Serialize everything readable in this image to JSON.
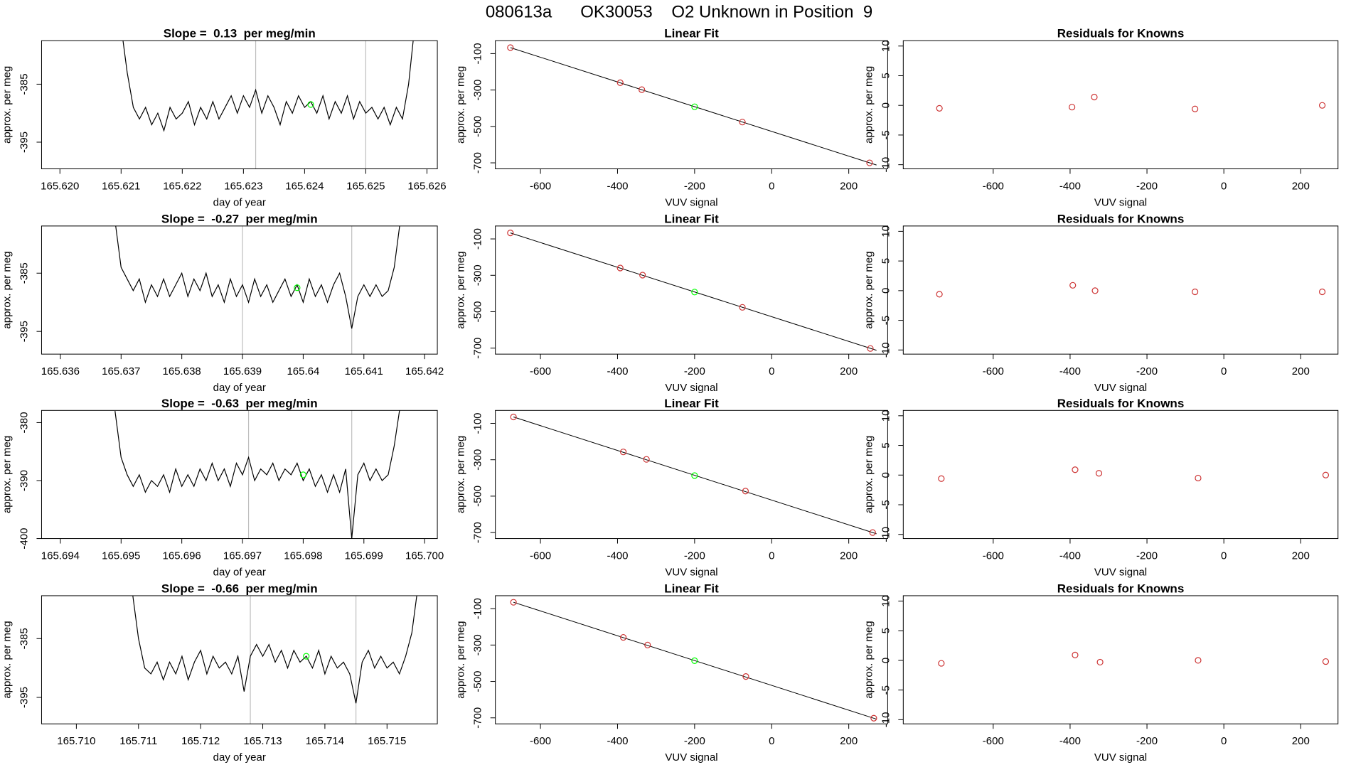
{
  "title": "080613a      OK30053    O2 Unknown in Position  9",
  "chart_data": [
    {
      "type": "line",
      "title": "Slope =  0.13  per meg/min",
      "xlabel": "day of year",
      "ylabel": "approx. per meg",
      "xlim": [
        165.6197,
        165.62617
      ],
      "ylim": [
        -399.6,
        -377.5
      ],
      "xticks": [
        {
          "value": 165.62,
          "label": "165.620"
        },
        165.621,
        165.622,
        165.623,
        165.624,
        165.625,
        165.626
      ],
      "yticks": [
        -385,
        -395
      ],
      "x": [
        165.621,
        165.6211,
        165.6212,
        165.6213,
        165.6214,
        165.6215,
        165.6216,
        165.6217,
        165.6218,
        165.6219,
        165.622,
        165.6221,
        165.6222,
        165.6223,
        165.6224,
        165.6225,
        165.6226,
        165.6227,
        165.6228,
        165.6229,
        165.623,
        165.6231,
        165.6232,
        165.6233,
        165.6234,
        165.6235,
        165.6236,
        165.6237,
        165.6238,
        165.6239,
        165.624,
        165.6241,
        165.6242,
        165.6243,
        165.6244,
        165.6245,
        165.6246,
        165.6247,
        165.6248,
        165.6249,
        165.625,
        165.6251,
        165.6252,
        165.6253,
        165.6254,
        165.6255,
        165.6256,
        165.6257,
        165.6258
      ],
      "values": [
        -375,
        -383,
        -389,
        -391,
        -389,
        -392,
        -390,
        -393,
        -389,
        -391,
        -390,
        -388,
        -392,
        -389,
        -391,
        -388,
        -391,
        -389,
        -387,
        -390,
        -387,
        -389,
        -386,
        -390,
        -387,
        -389,
        -392,
        -388,
        -390,
        -387,
        -389,
        -388,
        -390,
        -387,
        -391,
        -388,
        -390,
        -387,
        -391,
        -388,
        -390,
        -389,
        -391,
        -389,
        -392,
        -389,
        -391,
        -385,
        -375
      ],
      "color": "#000000",
      "vlines": [
        165.6232,
        165.625
      ],
      "vline_color": "#bebebe",
      "highlight": {
        "x": 165.6241,
        "y": -388.5,
        "color": "#00ff00"
      }
    },
    {
      "type": "scatter",
      "title": "Linear Fit",
      "xlabel": "VUV signal",
      "ylabel": "approx. per meg",
      "xlim": [
        -717,
        301
      ],
      "ylim": [
        -733,
        -29
      ],
      "xticks": [
        -600,
        -400,
        -200,
        0,
        200
      ],
      "yticks": [
        -100,
        -300,
        -500,
        -700
      ],
      "series": [
        {
          "color": "#cd3333",
          "x": [
            -678,
            -393,
            -337,
            -76,
            254
          ],
          "values": [
            -67,
            -260,
            -298,
            -476,
            -700
          ]
        },
        {
          "color": "#00ff00",
          "x": [
            -200
          ],
          "values": [
            -392
          ]
        }
      ],
      "fit_line": {
        "x": [
          -678,
          272
        ],
        "y": [
          -67,
          -712
        ],
        "color": "#000000"
      }
    },
    {
      "type": "scatter",
      "title": "Residuals for Knowns",
      "xlabel": "VUV signal",
      "ylabel": "approx. per meg",
      "xlim": [
        -834,
        297
      ],
      "ylim": [
        -10.7,
        10.9
      ],
      "xticks": [
        -600,
        -400,
        -200,
        0,
        200
      ],
      "yticks": [
        10,
        5,
        0,
        -5,
        -10
      ],
      "series": [
        {
          "color": "#cd3333",
          "x": [
            -740,
            -395,
            -337,
            -75,
            256
          ],
          "values": [
            -0.5,
            -0.3,
            1.4,
            -0.6,
            0
          ]
        }
      ]
    },
    {
      "type": "line",
      "title": "Slope =  -0.27  per meg/min",
      "xlabel": "day of year",
      "ylabel": "approx. per meg",
      "xlim": [
        165.63569,
        165.64221
      ],
      "ylim": [
        -398.9,
        -376.9
      ],
      "xticks": [
        165.636,
        165.637,
        165.638,
        165.639,
        165.64,
        165.641,
        165.642
      ],
      "yticks": [
        -385,
        -395
      ],
      "x": [
        165.6369,
        165.637,
        165.6371,
        165.6372,
        165.6373,
        165.6374,
        165.6375,
        165.6376,
        165.6377,
        165.6378,
        165.6379,
        165.638,
        165.6381,
        165.6382,
        165.6383,
        165.6384,
        165.6385,
        165.6386,
        165.6387,
        165.6388,
        165.6389,
        165.639,
        165.6391,
        165.6392,
        165.6393,
        165.6394,
        165.6395,
        165.6396,
        165.6397,
        165.6398,
        165.6399,
        165.64,
        165.6401,
        165.6402,
        165.6403,
        165.6404,
        165.6405,
        165.6406,
        165.6407,
        165.6408,
        165.6409,
        165.641,
        165.6411,
        165.6412,
        165.6413,
        165.6414,
        165.6415,
        165.6416
      ],
      "values": [
        -376,
        -384,
        -386,
        -388,
        -386,
        -390,
        -387,
        -389,
        -386,
        -389,
        -387,
        -385,
        -389,
        -386,
        -388,
        -385,
        -389,
        -387,
        -390,
        -386,
        -389,
        -387,
        -390,
        -386,
        -389,
        -387,
        -390,
        -388,
        -386,
        -389,
        -387,
        -390,
        -386,
        -389,
        -387,
        -390,
        -387,
        -385,
        -389,
        -394.5,
        -389,
        -387,
        -389,
        -387,
        -389,
        -388,
        -384,
        -376
      ],
      "color": "#000000",
      "vlines": [
        165.639,
        165.6408
      ],
      "vline_color": "#bebebe",
      "highlight": {
        "x": 165.6399,
        "y": -387.5,
        "color": "#00ff00"
      }
    },
    {
      "type": "scatter",
      "title": "Linear Fit",
      "xlabel": "VUV signal",
      "ylabel": "approx. per meg",
      "xlim": [
        -717,
        301
      ],
      "ylim": [
        -733,
        -29
      ],
      "xticks": [
        -600,
        -400,
        -200,
        0,
        200
      ],
      "yticks": [
        -100,
        -300,
        -500,
        -700
      ],
      "series": [
        {
          "color": "#cd3333",
          "x": [
            -678,
            -393,
            -335,
            -76,
            256
          ],
          "values": [
            -67,
            -260,
            -299,
            -476,
            -702
          ]
        },
        {
          "color": "#00ff00",
          "x": [
            -200
          ],
          "values": [
            -392
          ]
        }
      ],
      "fit_line": {
        "x": [
          -678,
          272
        ],
        "y": [
          -67,
          -712
        ],
        "color": "#000000"
      }
    },
    {
      "type": "scatter",
      "title": "Residuals for Knowns",
      "xlabel": "VUV signal",
      "ylabel": "approx. per meg",
      "xlim": [
        -834,
        297
      ],
      "ylim": [
        -10.7,
        10.9
      ],
      "xticks": [
        -600,
        -400,
        -200,
        0,
        200
      ],
      "yticks": [
        10,
        5,
        0,
        -5,
        -10
      ],
      "series": [
        {
          "color": "#cd3333",
          "x": [
            -740,
            -393,
            -335,
            -75,
            256
          ],
          "values": [
            -0.6,
            0.9,
            0,
            -0.2,
            -0.2
          ]
        }
      ]
    },
    {
      "type": "line",
      "title": "Slope =  -0.63  per meg/min",
      "xlabel": "day of year",
      "ylabel": "approx. per meg",
      "xlim": [
        165.69369,
        165.70021
      ],
      "ylim": [
        -400,
        -377.9
      ],
      "xticks": [
        165.694,
        165.695,
        165.696,
        165.697,
        165.698,
        165.699,
        {
          "value": 165.7,
          "label": "165.700"
        }
      ],
      "yticks": [
        -380,
        -390,
        -400
      ],
      "x": [
        165.6949,
        165.695,
        165.6951,
        165.6952,
        165.6953,
        165.6954,
        165.6955,
        165.6956,
        165.6957,
        165.6958,
        165.6959,
        165.696,
        165.6961,
        165.6962,
        165.6963,
        165.6964,
        165.6965,
        165.6966,
        165.6967,
        165.6968,
        165.6969,
        165.697,
        165.6971,
        165.6972,
        165.6973,
        165.6974,
        165.6975,
        165.6976,
        165.6977,
        165.6978,
        165.6979,
        165.698,
        165.6981,
        165.6982,
        165.6983,
        165.6984,
        165.6985,
        165.6986,
        165.6987,
        165.6988,
        165.6989,
        165.699,
        165.6991,
        165.6992,
        165.6993,
        165.6994,
        165.6995,
        165.6996
      ],
      "values": [
        -378,
        -386,
        -389,
        -391,
        -389,
        -392,
        -390,
        -391,
        -389,
        -392,
        -388,
        -391,
        -389,
        -391,
        -388,
        -390,
        -387,
        -390,
        -388,
        -391,
        -387,
        -389,
        -386,
        -390,
        -388,
        -389,
        -387,
        -390,
        -388,
        -389,
        -387,
        -390,
        -388,
        -391,
        -389,
        -392,
        -389,
        -392,
        -388,
        -400,
        -389,
        -387,
        -390,
        -388,
        -390,
        -389,
        -384,
        -377
      ],
      "color": "#000000",
      "vlines": [
        165.6971,
        165.6988
      ],
      "vline_color": "#bebebe",
      "highlight": {
        "x": 165.698,
        "y": -389,
        "color": "#00ff00"
      }
    },
    {
      "type": "scatter",
      "title": "Linear Fit",
      "xlabel": "VUV signal",
      "ylabel": "approx. per meg",
      "xlim": [
        -717,
        301
      ],
      "ylim": [
        -733,
        -29
      ],
      "xticks": [
        -600,
        -400,
        -200,
        0,
        200
      ],
      "yticks": [
        -100,
        -300,
        -500,
        -700
      ],
      "series": [
        {
          "color": "#cd3333",
          "x": [
            -670,
            -385,
            -325,
            -68,
            262
          ],
          "values": [
            -65,
            -257,
            -298,
            -472,
            -700
          ]
        },
        {
          "color": "#00ff00",
          "x": [
            -200
          ],
          "values": [
            -387
          ]
        }
      ],
      "fit_line": {
        "x": [
          -670,
          272
        ],
        "y": [
          -65,
          -707
        ],
        "color": "#000000"
      }
    },
    {
      "type": "scatter",
      "title": "Residuals for Knowns",
      "xlabel": "VUV signal",
      "ylabel": "approx. per meg",
      "xlim": [
        -834,
        297
      ],
      "ylim": [
        -10.7,
        10.9
      ],
      "xticks": [
        -600,
        -400,
        -200,
        0,
        200
      ],
      "yticks": [
        10,
        5,
        0,
        -5,
        -10
      ],
      "series": [
        {
          "color": "#cd3333",
          "x": [
            -735,
            -387,
            -325,
            -67,
            265
          ],
          "values": [
            -0.6,
            0.9,
            0.3,
            -0.5,
            0
          ]
        }
      ]
    },
    {
      "type": "line",
      "title": "Slope =  -0.66  per meg/min",
      "xlabel": "day of year",
      "ylabel": "approx. per meg",
      "xlim": [
        165.70944,
        165.71581
      ],
      "ylim": [
        -399.5,
        -377.7
      ],
      "xticks": [
        {
          "value": 165.71,
          "label": "165.710"
        },
        165.711,
        165.712,
        165.713,
        165.714,
        165.715
      ],
      "yticks": [
        -385,
        -395
      ],
      "x": [
        165.7109,
        165.711,
        165.7111,
        165.7112,
        165.7113,
        165.7114,
        165.7115,
        165.7116,
        165.7117,
        165.7118,
        165.7119,
        165.712,
        165.7121,
        165.7122,
        165.7123,
        165.7124,
        165.7125,
        165.7126,
        165.7127,
        165.7128,
        165.7129,
        165.713,
        165.7131,
        165.7132,
        165.7133,
        165.7134,
        165.7135,
        165.7136,
        165.7137,
        165.7138,
        165.7139,
        165.714,
        165.7141,
        165.7142,
        165.7143,
        165.7144,
        165.7145,
        165.7146,
        165.7147,
        165.7148,
        165.7149,
        165.715,
        165.7151,
        165.7152,
        165.7153,
        165.7154,
        165.7155
      ],
      "values": [
        -377,
        -385,
        -390,
        -391,
        -389,
        -392,
        -389,
        -391,
        -388,
        -392,
        -389,
        -387,
        -391,
        -388,
        -390,
        -389,
        -391,
        -388,
        -394,
        -388,
        -386,
        -388,
        -386,
        -389,
        -387,
        -390,
        -387,
        -389,
        -388,
        -390,
        -387,
        -391,
        -388,
        -390,
        -389,
        -391,
        -396,
        -389,
        -387,
        -390,
        -388,
        -390,
        -389,
        -391,
        -388,
        -384,
        -376
      ],
      "color": "#000000",
      "vlines": [
        165.7128,
        165.7145
      ],
      "vline_color": "#bebebe",
      "highlight": {
        "x": 165.7137,
        "y": -388,
        "color": "#00ff00"
      }
    },
    {
      "type": "scatter",
      "title": "Linear Fit",
      "xlabel": "VUV signal",
      "ylabel": "approx. per meg",
      "xlim": [
        -717,
        301
      ],
      "ylim": [
        -733,
        -29
      ],
      "xticks": [
        -600,
        -400,
        -200,
        0,
        200
      ],
      "yticks": [
        -100,
        -300,
        -500,
        -700
      ],
      "series": [
        {
          "color": "#cd3333",
          "x": [
            -670,
            -385,
            -322,
            -67,
            265
          ],
          "values": [
            -65,
            -258,
            -300,
            -473,
            -702
          ]
        },
        {
          "color": "#00ff00",
          "x": [
            -200
          ],
          "values": [
            -386
          ]
        }
      ],
      "fit_line": {
        "x": [
          -670,
          272
        ],
        "y": [
          -65,
          -707
        ],
        "color": "#000000"
      }
    },
    {
      "type": "scatter",
      "title": "Residuals for Knowns",
      "xlabel": "VUV signal",
      "ylabel": "approx. per meg",
      "xlim": [
        -834,
        297
      ],
      "ylim": [
        -10.7,
        10.9
      ],
      "xticks": [
        -600,
        -400,
        -200,
        0,
        200
      ],
      "yticks": [
        10,
        5,
        0,
        -5,
        -10
      ],
      "series": [
        {
          "color": "#cd3333",
          "x": [
            -735,
            -387,
            -322,
            -67,
            265
          ],
          "values": [
            -0.5,
            0.9,
            -0.3,
            0,
            -0.2
          ]
        }
      ]
    }
  ]
}
